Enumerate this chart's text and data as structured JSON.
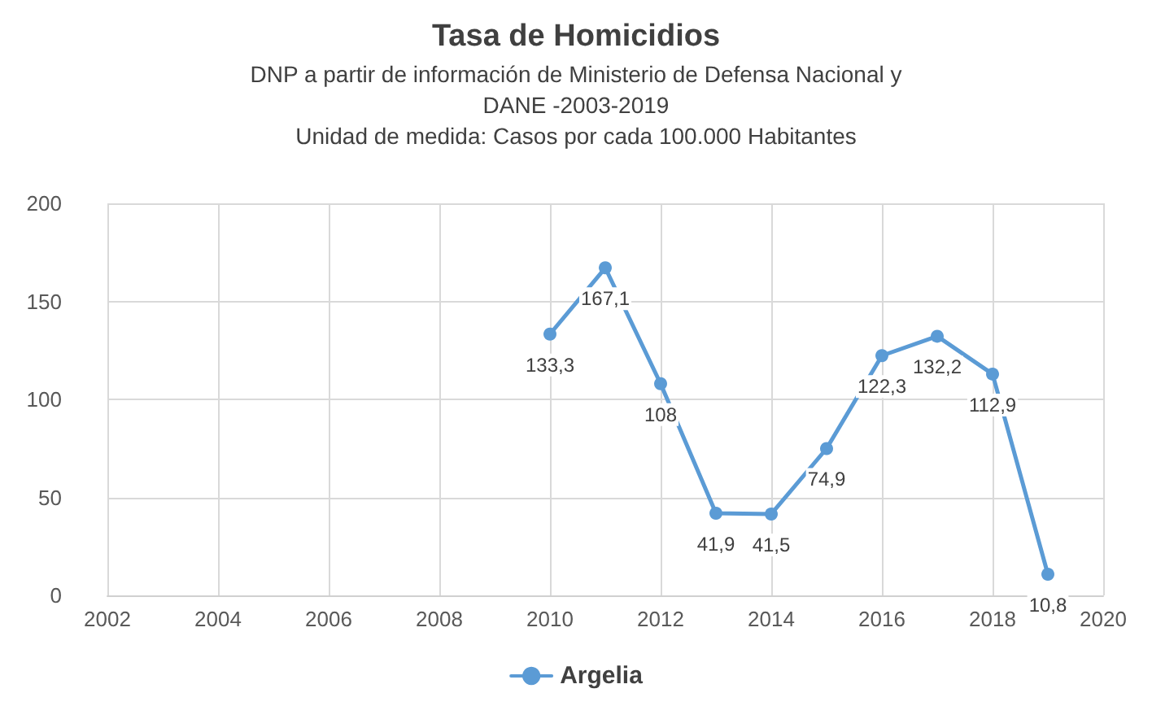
{
  "chart_data": {
    "type": "line",
    "title": "Tasa de Homicidios",
    "subtitle": "DNP a partir de información de Ministerio de Defensa Nacional y\nDANE -2003-2019\nUnidad de medida: Casos por cada 100.000 Habitantes",
    "x": [
      2010,
      2011,
      2012,
      2013,
      2014,
      2015,
      2016,
      2017,
      2018,
      2019
    ],
    "series": [
      {
        "name": "Argelia",
        "color": "#5b9bd5",
        "values": [
          133.3,
          167.1,
          108,
          41.9,
          41.5,
          74.9,
          122.3,
          132.2,
          112.9,
          10.8
        ],
        "value_labels": [
          "133,3",
          "167,1",
          "108",
          "41,9",
          "41,5",
          "74,9",
          "122,3",
          "132,2",
          "112,9",
          "10,8"
        ]
      }
    ],
    "xlim": [
      2002,
      2020
    ],
    "xticks": [
      2002,
      2004,
      2006,
      2008,
      2010,
      2012,
      2014,
      2016,
      2018,
      2020
    ],
    "ylim": [
      0,
      200
    ],
    "yticks": [
      0,
      50,
      100,
      150,
      200
    ],
    "grid": true,
    "legend": "bottom",
    "marker": "circle",
    "line_style": "solid"
  }
}
